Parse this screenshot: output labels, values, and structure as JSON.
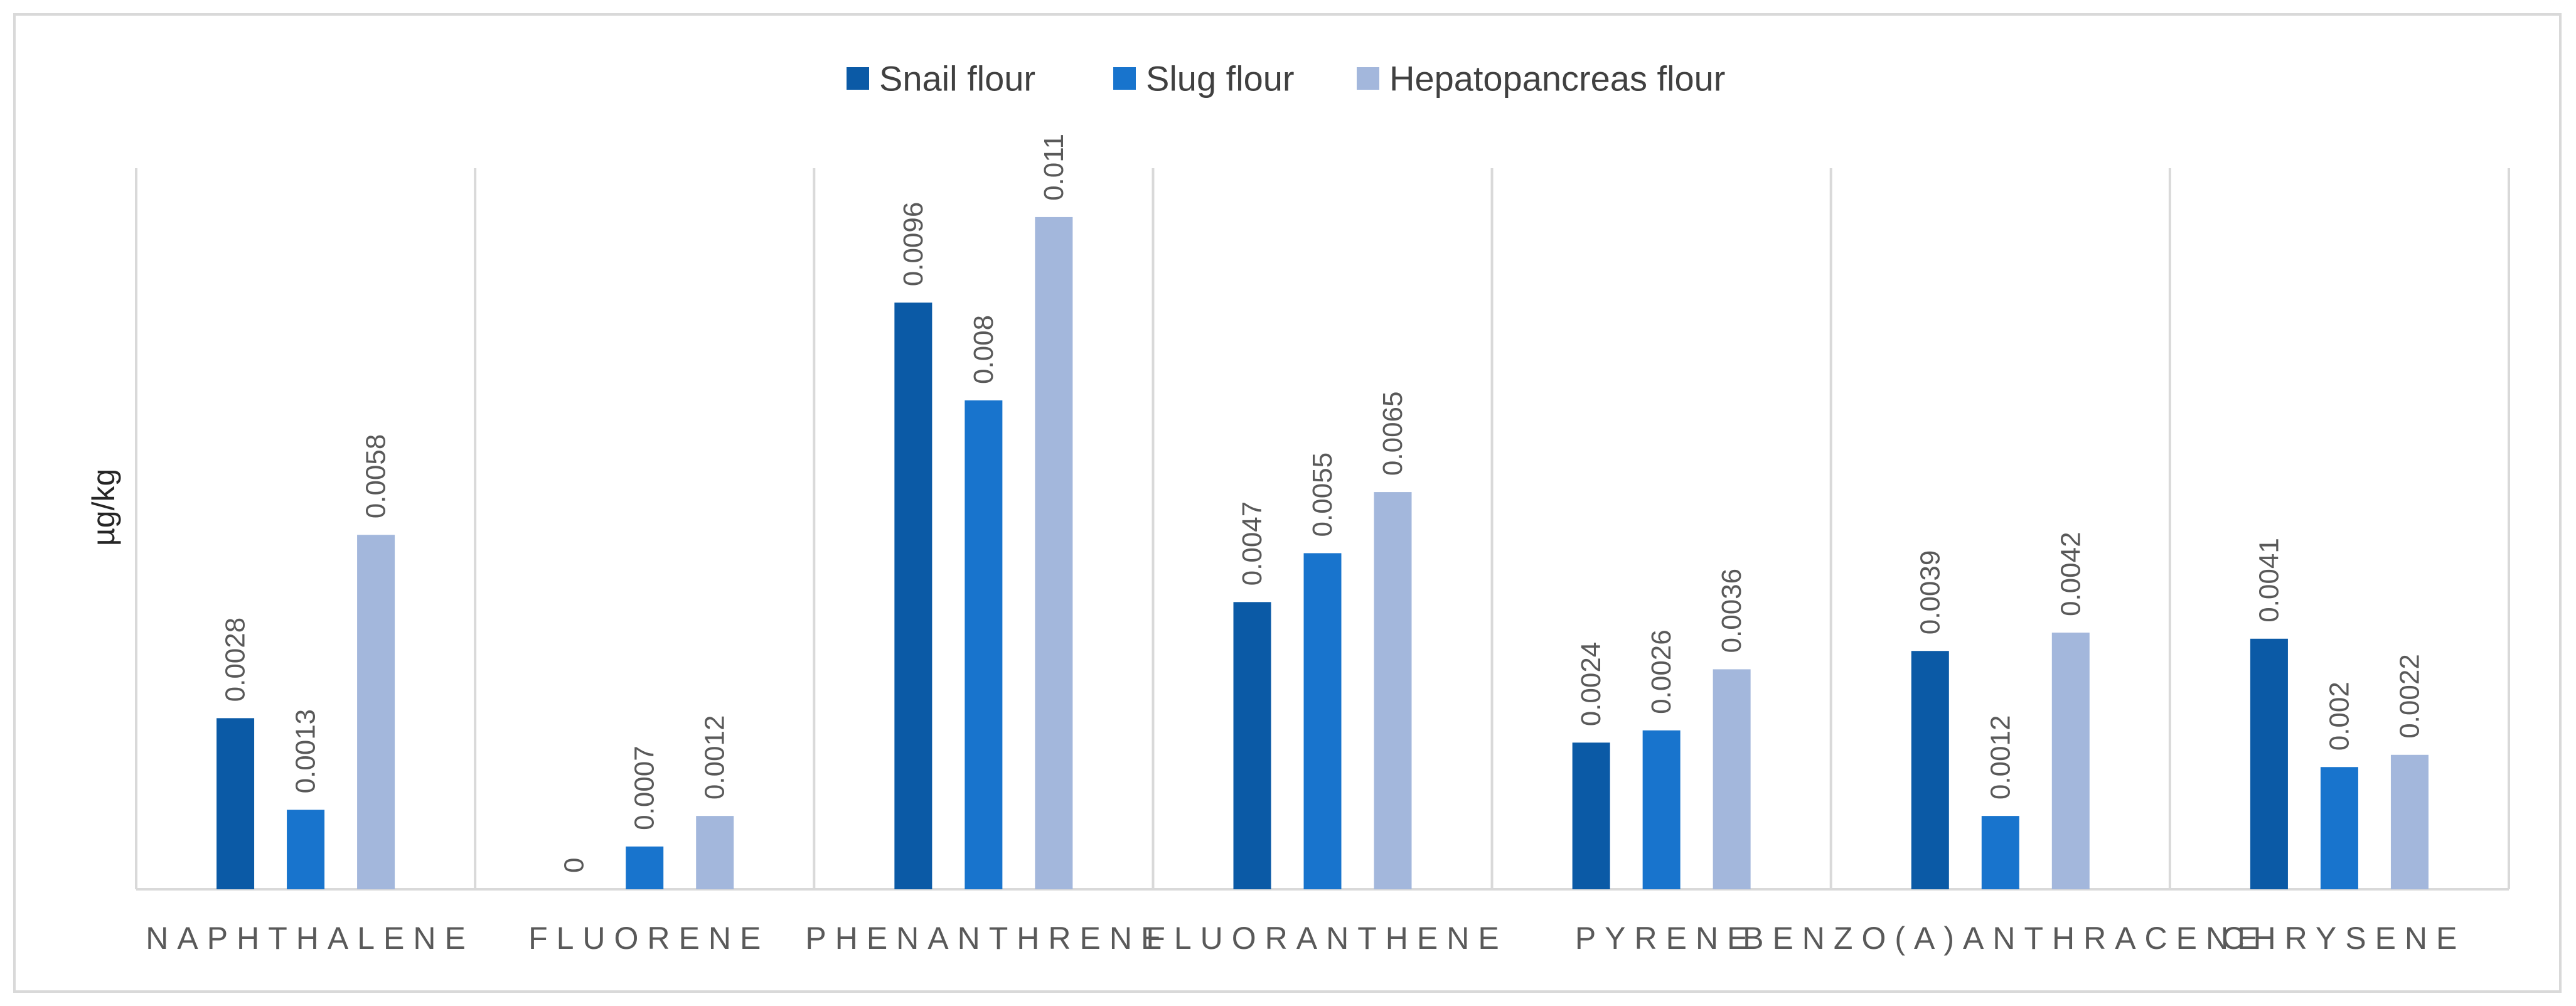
{
  "chart_data": {
    "type": "bar",
    "title": "",
    "xlabel": "",
    "ylabel": "µg/kg",
    "ylim": [
      0,
      0.012
    ],
    "grid": false,
    "legend_position": "top",
    "categories": [
      "NAPHTHALENE",
      "FLUORENE",
      "PHENANTHRENE",
      "FLUORANTHENE",
      "PYRENE",
      "BENZO(A)ANTHRACENE",
      "CHRYSENE"
    ],
    "series": [
      {
        "name": "Snail flour",
        "color": "#0b5aa6",
        "values": [
          0.0028,
          0,
          0.0096,
          0.0047,
          0.0024,
          0.0039,
          0.0041
        ],
        "labels": [
          "0.0028",
          "0",
          "0.0096",
          "0.0047",
          "0.0024",
          "0.0039",
          "0.0041"
        ]
      },
      {
        "name": "Slug flour",
        "color": "#1874cd",
        "values": [
          0.0013,
          0.0007,
          0.008,
          0.0055,
          0.0026,
          0.0012,
          0.002
        ],
        "labels": [
          "0.0013",
          "0.0007",
          "0.008",
          "0.0055",
          "0.0026",
          "0.0012",
          "0.002"
        ]
      },
      {
        "name": "Hepatopancreas flour",
        "color": "#a3b7dc",
        "values": [
          0.0058,
          0.0012,
          0.011,
          0.0065,
          0.0036,
          0.0042,
          0.0022
        ],
        "labels": [
          "0.0058",
          "0.0012",
          "0.011",
          "0.0065",
          "0.0036",
          "0.0042",
          "0.0022"
        ]
      }
    ]
  }
}
